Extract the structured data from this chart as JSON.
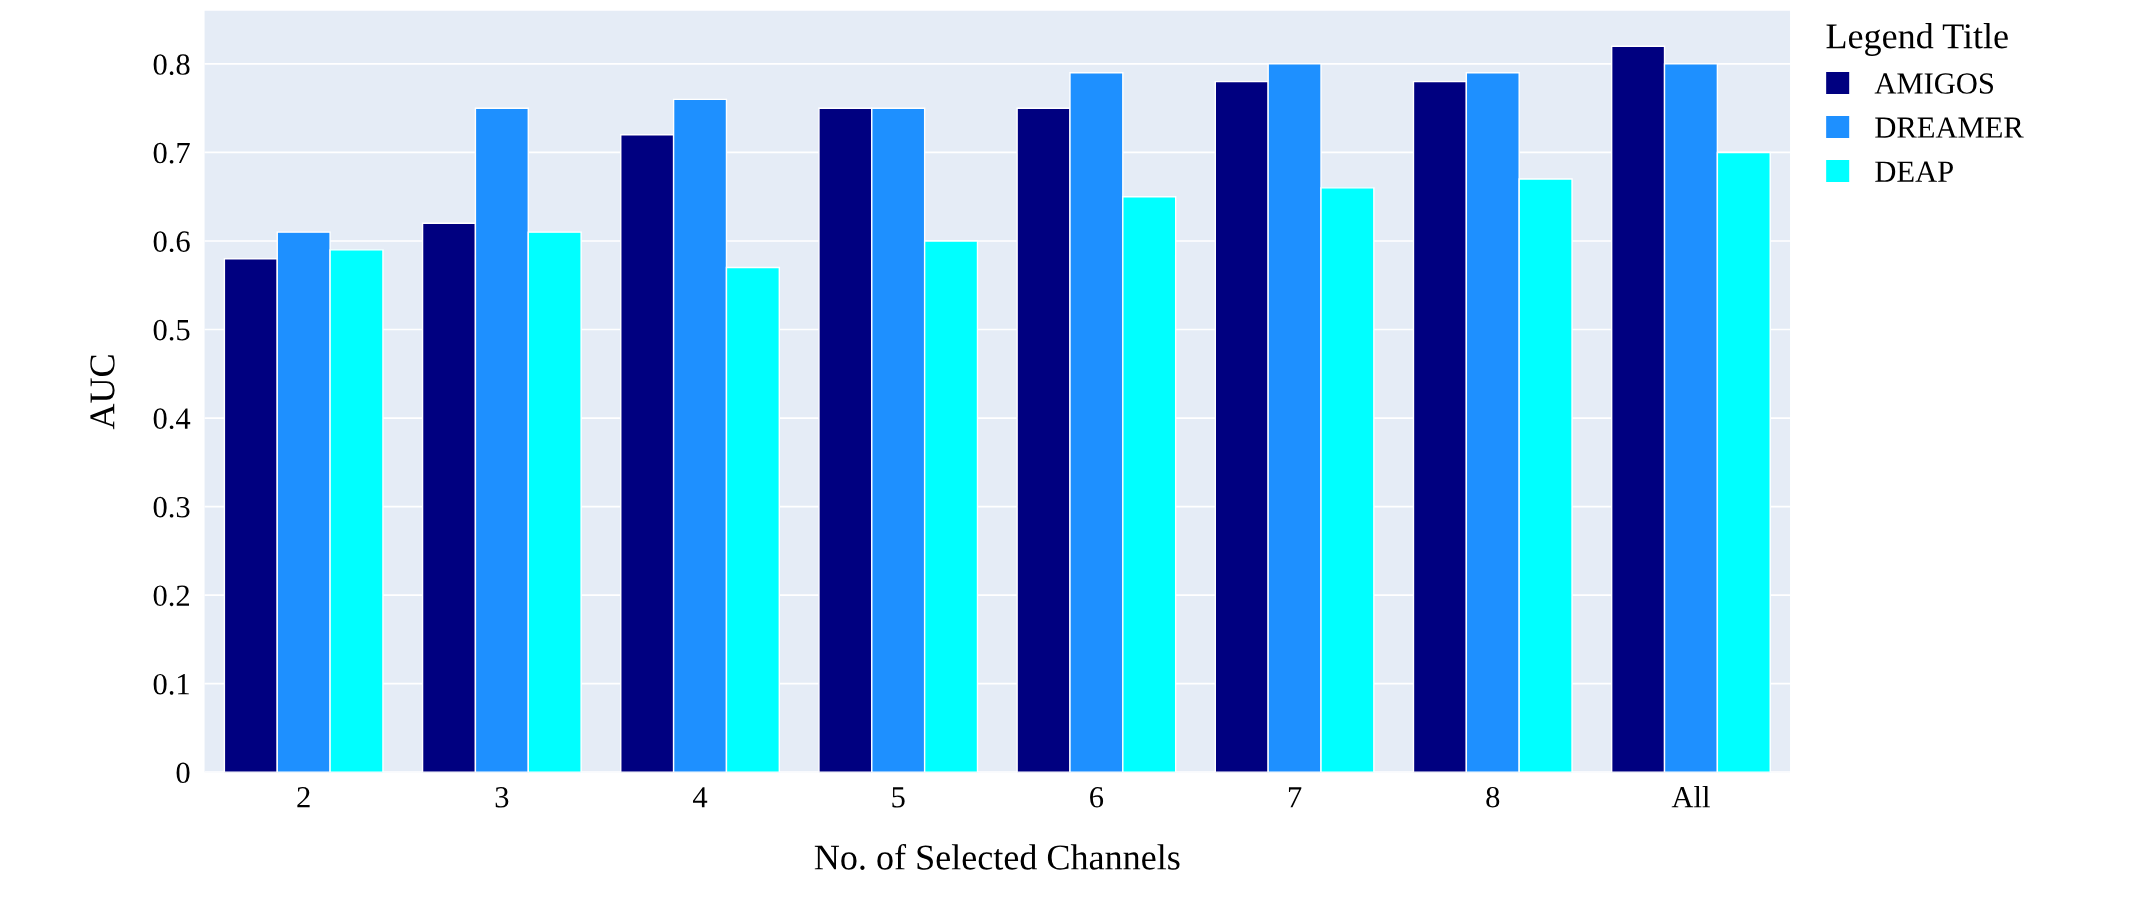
{
  "chart_data": {
    "type": "bar",
    "xlabel": "No. of Selected Channels",
    "ylabel": "AUC",
    "legend_title": "Legend Title",
    "categories": [
      "2",
      "3",
      "4",
      "5",
      "6",
      "7",
      "8",
      "All"
    ],
    "series": [
      {
        "name": "AMIGOS",
        "color": "#000080",
        "values": [
          0.58,
          0.62,
          0.72,
          0.75,
          0.75,
          0.78,
          0.78,
          0.82
        ]
      },
      {
        "name": "DREAMER",
        "color": "#1e90ff",
        "values": [
          0.61,
          0.75,
          0.76,
          0.75,
          0.79,
          0.8,
          0.79,
          0.8
        ]
      },
      {
        "name": "DEAP",
        "color": "#00ffff",
        "values": [
          0.59,
          0.61,
          0.57,
          0.6,
          0.65,
          0.66,
          0.67,
          0.7
        ]
      }
    ],
    "ylim": [
      0,
      0.86
    ],
    "yticks": [
      {
        "value": 0,
        "label": "0"
      },
      0.1,
      0.2,
      0.3,
      0.4,
      0.5,
      0.6,
      0.7,
      0.8
    ],
    "grid": "y",
    "legend": "top right"
  }
}
